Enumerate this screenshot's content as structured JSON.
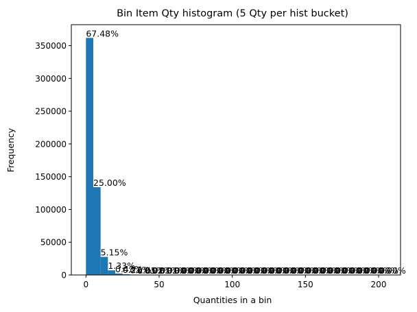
{
  "chart_data": {
    "type": "bar",
    "title": "Bin Item Qty histogram (5 Qty per hist bucket)",
    "xlabel": "Quantities in a bin",
    "ylabel": "Frequency",
    "xlim": [
      -10,
      215
    ],
    "ylim": [
      0,
      382000
    ],
    "bin_width": 5,
    "bar_color": "#1f77b4",
    "x_ticks": [
      0,
      50,
      100,
      150,
      200
    ],
    "x_tick_labels": [
      "0",
      "50",
      "100",
      "150",
      "200"
    ],
    "y_ticks": [
      0,
      50000,
      100000,
      150000,
      200000,
      250000,
      300000,
      350000
    ],
    "y_tick_labels": [
      "0",
      "50000",
      "100000",
      "150000",
      "200000",
      "250000",
      "300000",
      "350000"
    ],
    "bins": [
      {
        "x0": 0,
        "x1": 5,
        "value": 361800,
        "label": "67.48%"
      },
      {
        "x0": 5,
        "x1": 10,
        "value": 134000,
        "label": "25.00%"
      },
      {
        "x0": 10,
        "x1": 15,
        "value": 27600,
        "label": "5.15%"
      },
      {
        "x0": 15,
        "x1": 20,
        "value": 7100,
        "label": "1.33%"
      },
      {
        "x0": 20,
        "x1": 25,
        "value": 2300,
        "label": "0.43%"
      },
      {
        "x0": 25,
        "x1": 30,
        "value": 1100,
        "label": "0.21%"
      },
      {
        "x0": 30,
        "x1": 35,
        "value": 500,
        "label": "0.1%"
      },
      {
        "x0": 35,
        "x1": 40,
        "value": 250,
        "label": "0.05%"
      },
      {
        "x0": 40,
        "x1": 45,
        "value": 120,
        "label": "0.02%"
      },
      {
        "x0": 45,
        "x1": 50,
        "value": 60,
        "label": "0.01%"
      },
      {
        "x0": 50,
        "x1": 55,
        "value": 30,
        "label": "0.01%"
      },
      {
        "x0": 55,
        "x1": 60,
        "value": 20,
        "label": "0.00%"
      },
      {
        "x0": 60,
        "x1": 65,
        "value": 10,
        "label": "0.00%"
      },
      {
        "x0": 65,
        "x1": 70,
        "value": 10,
        "label": "0.00%"
      },
      {
        "x0": 70,
        "x1": 75,
        "value": 5,
        "label": "0.00%"
      },
      {
        "x0": 75,
        "x1": 80,
        "value": 5,
        "label": "0.00%"
      },
      {
        "x0": 80,
        "x1": 85,
        "value": 5,
        "label": "0.00%"
      },
      {
        "x0": 85,
        "x1": 90,
        "value": 3,
        "label": "0.00%"
      },
      {
        "x0": 90,
        "x1": 95,
        "value": 3,
        "label": "0.00%"
      },
      {
        "x0": 95,
        "x1": 100,
        "value": 3,
        "label": "0.00%"
      },
      {
        "x0": 100,
        "x1": 105,
        "value": 2,
        "label": "0.00%"
      },
      {
        "x0": 105,
        "x1": 110,
        "value": 2,
        "label": "0.00%"
      },
      {
        "x0": 110,
        "x1": 115,
        "value": 2,
        "label": "0.00%"
      },
      {
        "x0": 115,
        "x1": 120,
        "value": 2,
        "label": "0.00%"
      },
      {
        "x0": 120,
        "x1": 125,
        "value": 1,
        "label": "0.00%"
      },
      {
        "x0": 125,
        "x1": 130,
        "value": 1,
        "label": "0.00%"
      },
      {
        "x0": 130,
        "x1": 135,
        "value": 1,
        "label": "0.00%"
      },
      {
        "x0": 135,
        "x1": 140,
        "value": 1,
        "label": "0.00%"
      },
      {
        "x0": 140,
        "x1": 145,
        "value": 1,
        "label": "0.00%"
      },
      {
        "x0": 145,
        "x1": 150,
        "value": 1,
        "label": "0.00%"
      },
      {
        "x0": 150,
        "x1": 155,
        "value": 1,
        "label": "0.00%"
      },
      {
        "x0": 155,
        "x1": 160,
        "value": 1,
        "label": "0.00%"
      },
      {
        "x0": 160,
        "x1": 165,
        "value": 1,
        "label": "0.00%"
      },
      {
        "x0": 165,
        "x1": 170,
        "value": 1,
        "label": "0.00%"
      },
      {
        "x0": 170,
        "x1": 175,
        "value": 1,
        "label": "0.00%"
      },
      {
        "x0": 175,
        "x1": 180,
        "value": 1,
        "label": "0.00%"
      },
      {
        "x0": 180,
        "x1": 185,
        "value": 1,
        "label": "0.00%"
      },
      {
        "x0": 185,
        "x1": 190,
        "value": 1,
        "label": "0.00%"
      },
      {
        "x0": 190,
        "x1": 195,
        "value": 1,
        "label": "0.00%"
      },
      {
        "x0": 195,
        "x1": 200,
        "value": 1,
        "label": "0.00%"
      },
      {
        "x0": 200,
        "x1": 205,
        "value": 1,
        "label": "0.00%"
      }
    ]
  }
}
